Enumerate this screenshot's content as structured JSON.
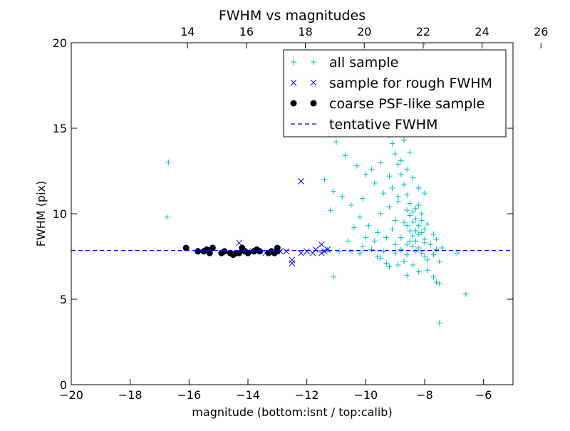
{
  "chart_data": {
    "type": "scatter",
    "title": "FWHM vs magnitudes",
    "xlabel": "magnitude (bottom:isnt / top:calib)",
    "ylabel": "FWHM (pix)",
    "xlim": [
      -20,
      -5
    ],
    "ylim": [
      0,
      20
    ],
    "x_ticks": [
      -20,
      -18,
      -16,
      -14,
      -12,
      -10,
      -8,
      -6
    ],
    "x_tick_labels": [
      "−20",
      "−18",
      "−16",
      "−14",
      "−12",
      "−10",
      "−8",
      "−6"
    ],
    "y_ticks": [
      0,
      5,
      10,
      15,
      20
    ],
    "y_tick_labels": [
      "0",
      "5",
      "10",
      "15",
      "20"
    ],
    "top_axis": {
      "offset": 30.05,
      "ticks": [
        14,
        16,
        18,
        20,
        22,
        24,
        26
      ],
      "tick_labels": [
        "14",
        "16",
        "18",
        "20",
        "22",
        "24",
        "26"
      ]
    },
    "grid": false,
    "legend_position": "top-right",
    "series": [
      {
        "name": "all sample",
        "marker": "plus",
        "color": "#00bfbf",
        "points": [
          [
            -16.7,
            13.0
          ],
          [
            -16.75,
            9.8
          ],
          [
            -11.1,
            6.3
          ],
          [
            -10.5,
            7.8
          ],
          [
            -10.2,
            7.7
          ],
          [
            -11.3,
            7.9
          ],
          [
            -10.9,
            7.8
          ],
          [
            -9.5,
            7.4
          ],
          [
            -9.2,
            6.9
          ],
          [
            -8.9,
            7.0
          ],
          [
            -8.6,
            6.4
          ],
          [
            -8.2,
            6.6
          ],
          [
            -7.9,
            6.7
          ],
          [
            -7.7,
            6.3
          ],
          [
            -7.6,
            6.0
          ],
          [
            -7.5,
            5.9
          ],
          [
            -7.5,
            3.6
          ],
          [
            -6.6,
            5.3
          ],
          [
            -6.9,
            7.7
          ],
          [
            -7.6,
            7.9
          ],
          [
            -7.8,
            8.2
          ],
          [
            -8.0,
            8.5
          ],
          [
            -8.1,
            8.9
          ],
          [
            -8.2,
            9.3
          ],
          [
            -8.3,
            9.7
          ],
          [
            -8.4,
            10.1
          ],
          [
            -8.5,
            10.6
          ],
          [
            -8.6,
            11.1
          ],
          [
            -8.7,
            11.7
          ],
          [
            -8.8,
            12.3
          ],
          [
            -8.9,
            12.9
          ],
          [
            -9.0,
            13.5
          ],
          [
            -9.1,
            14.1
          ],
          [
            -9.2,
            14.6
          ],
          [
            -9.3,
            15.0
          ],
          [
            -9.0,
            8.2
          ],
          [
            -9.3,
            8.6
          ],
          [
            -9.6,
            8.9
          ],
          [
            -9.9,
            9.3
          ],
          [
            -10.2,
            9.8
          ],
          [
            -10.5,
            10.5
          ],
          [
            -10.8,
            11.0
          ],
          [
            -11.1,
            11.3
          ],
          [
            -11.4,
            12.0
          ],
          [
            -11.0,
            14.2
          ],
          [
            -10.7,
            13.4
          ],
          [
            -10.3,
            12.8
          ],
          [
            -10.0,
            12.3
          ],
          [
            -9.7,
            11.8
          ],
          [
            -9.4,
            11.2
          ],
          [
            -8.4,
            8.7
          ],
          [
            -8.5,
            9.0
          ],
          [
            -8.3,
            8.4
          ],
          [
            -8.2,
            8.0
          ],
          [
            -8.1,
            7.7
          ],
          [
            -8.0,
            7.5
          ],
          [
            -8.6,
            8.2
          ],
          [
            -8.8,
            7.9
          ],
          [
            -9.0,
            7.7
          ],
          [
            -9.4,
            7.8
          ],
          [
            -9.8,
            7.9
          ],
          [
            -10.1,
            8.1
          ],
          [
            -9.7,
            8.4
          ],
          [
            -9.1,
            9.1
          ],
          [
            -8.7,
            9.5
          ],
          [
            -8.5,
            9.9
          ],
          [
            -8.3,
            10.3
          ],
          [
            -8.1,
            10.0
          ],
          [
            -7.9,
            9.4
          ],
          [
            -7.7,
            8.8
          ],
          [
            -8.2,
            11.5
          ],
          [
            -8.4,
            12.1
          ],
          [
            -8.6,
            12.6
          ],
          [
            -8.8,
            13.1
          ],
          [
            -8.5,
            13.6
          ],
          [
            -8.7,
            14.3
          ],
          [
            -8.9,
            11.0
          ],
          [
            -9.2,
            10.4
          ],
          [
            -9.5,
            10.0
          ],
          [
            -8.0,
            9.1
          ],
          [
            -8.3,
            7.8
          ],
          [
            -8.6,
            7.6
          ],
          [
            -7.9,
            7.3
          ],
          [
            -7.7,
            7.6
          ],
          [
            -7.5,
            7.2
          ],
          [
            -8.4,
            8.1
          ],
          [
            -8.2,
            8.8
          ],
          [
            -8.0,
            8.3
          ],
          [
            -8.6,
            9.3
          ],
          [
            -8.8,
            8.6
          ],
          [
            -9.0,
            9.6
          ],
          [
            -8.3,
            9.0
          ],
          [
            -8.1,
            9.6
          ],
          [
            -8.5,
            8.4
          ],
          [
            -8.4,
            9.5
          ],
          [
            -8.2,
            10.5
          ],
          [
            -8.6,
            10.2
          ],
          [
            -9.2,
            12.2
          ],
          [
            -9.5,
            13.0
          ],
          [
            -8.0,
            11.2
          ],
          [
            -8.7,
            7.2
          ],
          [
            -8.4,
            7.0
          ],
          [
            -9.3,
            7.1
          ],
          [
            -9.6,
            7.5
          ],
          [
            -10.0,
            8.6
          ],
          [
            -10.4,
            9.2
          ],
          [
            -10.6,
            8.4
          ],
          [
            -7.6,
            8.5
          ],
          [
            -7.4,
            8.0
          ],
          [
            -8.9,
            10.7
          ],
          [
            -9.1,
            11.5
          ],
          [
            -9.8,
            12.6
          ],
          [
            -10.1,
            10.9
          ],
          [
            -11.2,
            10.2
          ],
          [
            -8.0,
            20.0
          ]
        ]
      },
      {
        "name": "sample for rough FWHM",
        "marker": "cross",
        "color": "#0000ff",
        "points": [
          [
            -14.3,
            8.3
          ],
          [
            -12.2,
            11.9
          ],
          [
            -12.7,
            7.8
          ],
          [
            -12.5,
            7.3
          ],
          [
            -12.5,
            7.1
          ],
          [
            -12.2,
            7.7
          ],
          [
            -12.0,
            7.8
          ],
          [
            -11.8,
            7.7
          ],
          [
            -11.7,
            7.9
          ],
          [
            -11.5,
            8.2
          ],
          [
            -11.5,
            7.7
          ],
          [
            -11.4,
            7.8
          ],
          [
            -11.3,
            7.9
          ],
          [
            -12.9,
            7.8
          ],
          [
            -14.0,
            7.8
          ],
          [
            -13.4,
            7.7
          ]
        ]
      },
      {
        "name": "coarse PSF-like sample",
        "marker": "dot",
        "color": "#000000",
        "points": [
          [
            -16.1,
            8.0
          ],
          [
            -15.7,
            7.8
          ],
          [
            -15.5,
            7.8
          ],
          [
            -15.4,
            7.9
          ],
          [
            -15.3,
            7.7
          ],
          [
            -15.2,
            8.0
          ],
          [
            -14.9,
            7.7
          ],
          [
            -14.8,
            7.8
          ],
          [
            -14.6,
            7.7
          ],
          [
            -14.5,
            7.6
          ],
          [
            -14.4,
            7.7
          ],
          [
            -14.3,
            7.7
          ],
          [
            -14.2,
            8.0
          ],
          [
            -14.1,
            7.8
          ],
          [
            -14.0,
            7.7
          ],
          [
            -13.8,
            7.8
          ],
          [
            -13.7,
            7.9
          ],
          [
            -13.6,
            7.8
          ],
          [
            -13.3,
            7.7
          ],
          [
            -13.2,
            7.8
          ],
          [
            -13.1,
            7.7
          ],
          [
            -13.0,
            7.8
          ],
          [
            -13.0,
            8.0
          ]
        ]
      },
      {
        "name": "tentative FWHM",
        "marker": "dashed-line",
        "color": "#0000ff",
        "y": 7.85
      }
    ]
  }
}
